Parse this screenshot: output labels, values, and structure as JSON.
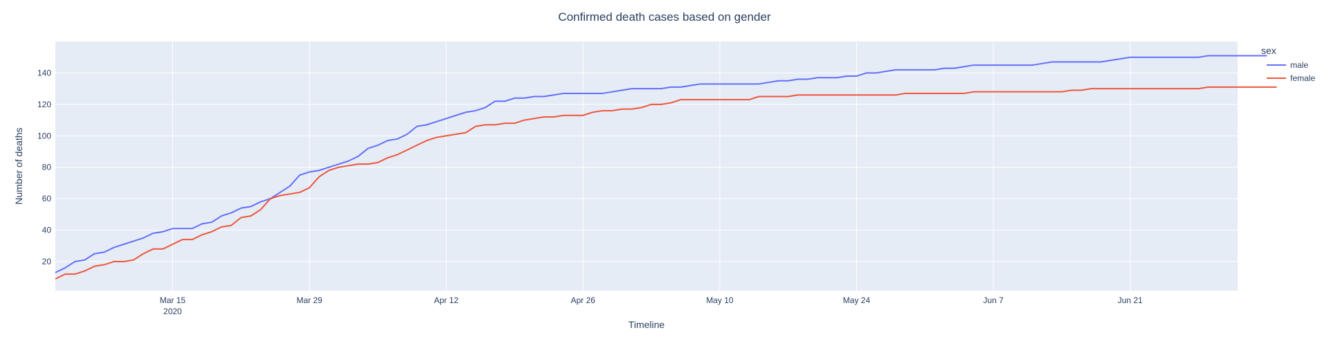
{
  "chart_data": {
    "type": "line",
    "title": "Confirmed death cases based on gender",
    "xlabel": "Timeline",
    "ylabel": "Number of deaths",
    "x_start": "2020-03-03",
    "x_tick_labels": [
      {
        "date": "2020-03-15",
        "label": "Mar 15",
        "sublabel": "2020"
      },
      {
        "date": "2020-03-29",
        "label": "Mar 29",
        "sublabel": ""
      },
      {
        "date": "2020-04-12",
        "label": "Apr 12",
        "sublabel": ""
      },
      {
        "date": "2020-04-26",
        "label": "Apr 26",
        "sublabel": ""
      },
      {
        "date": "2020-05-10",
        "label": "May 10",
        "sublabel": ""
      },
      {
        "date": "2020-05-24",
        "label": "May 24",
        "sublabel": ""
      },
      {
        "date": "2020-06-07",
        "label": "Jun 7",
        "sublabel": ""
      },
      {
        "date": "2020-06-21",
        "label": "Jun 21",
        "sublabel": ""
      }
    ],
    "y_ticks": [
      20,
      40,
      60,
      80,
      100,
      120,
      140
    ],
    "ylim": [
      1.5,
      160
    ],
    "xlim": [
      "2020-03-03",
      "2020-07-02"
    ],
    "grid": true,
    "legend_title": "sex",
    "legend_placement": "right",
    "series": [
      {
        "name": "male",
        "color": "#636efa",
        "values": [
          13,
          16,
          20,
          21,
          25,
          26,
          29,
          31,
          33,
          35,
          38,
          39,
          41,
          41,
          41,
          44,
          45,
          49,
          51,
          54,
          55,
          58,
          60,
          64,
          68,
          75,
          77,
          78,
          80,
          82,
          84,
          87,
          92,
          94,
          97,
          98,
          101,
          106,
          107,
          109,
          111,
          113,
          115,
          116,
          118,
          122,
          122,
          124,
          124,
          125,
          125,
          126,
          127,
          127,
          127,
          127,
          127,
          128,
          129,
          130,
          130,
          130,
          130,
          131,
          131,
          132,
          133,
          133,
          133,
          133,
          133,
          133,
          133,
          134,
          135,
          135,
          136,
          136,
          137,
          137,
          137,
          138,
          138,
          140,
          140,
          141,
          142,
          142,
          142,
          142,
          142,
          143,
          143,
          144,
          145,
          145,
          145,
          145,
          145,
          145,
          145,
          146,
          147,
          147,
          147,
          147,
          147,
          147,
          148,
          149,
          150,
          150,
          150,
          150,
          150,
          150,
          150,
          150,
          151,
          151,
          151,
          151,
          151,
          151,
          151
        ]
      },
      {
        "name": "female",
        "color": "#ef553b",
        "values": [
          9,
          12,
          12,
          14,
          17,
          18,
          20,
          20,
          21,
          25,
          28,
          28,
          31,
          34,
          34,
          37,
          39,
          42,
          43,
          48,
          49,
          53,
          60,
          62,
          63,
          64,
          67,
          74,
          78,
          80,
          81,
          82,
          82,
          83,
          86,
          88,
          91,
          94,
          97,
          99,
          100,
          101,
          102,
          106,
          107,
          107,
          108,
          108,
          110,
          111,
          112,
          112,
          113,
          113,
          113,
          115,
          116,
          116,
          117,
          117,
          118,
          120,
          120,
          121,
          123,
          123,
          123,
          123,
          123,
          123,
          123,
          123,
          125,
          125,
          125,
          125,
          126,
          126,
          126,
          126,
          126,
          126,
          126,
          126,
          126,
          126,
          126,
          127,
          127,
          127,
          127,
          127,
          127,
          127,
          128,
          128,
          128,
          128,
          128,
          128,
          128,
          128,
          128,
          128,
          129,
          129,
          130,
          130,
          130,
          130,
          130,
          130,
          130,
          130,
          130,
          130,
          130,
          130,
          131,
          131,
          131,
          131,
          131,
          131,
          131,
          131
        ]
      }
    ]
  }
}
